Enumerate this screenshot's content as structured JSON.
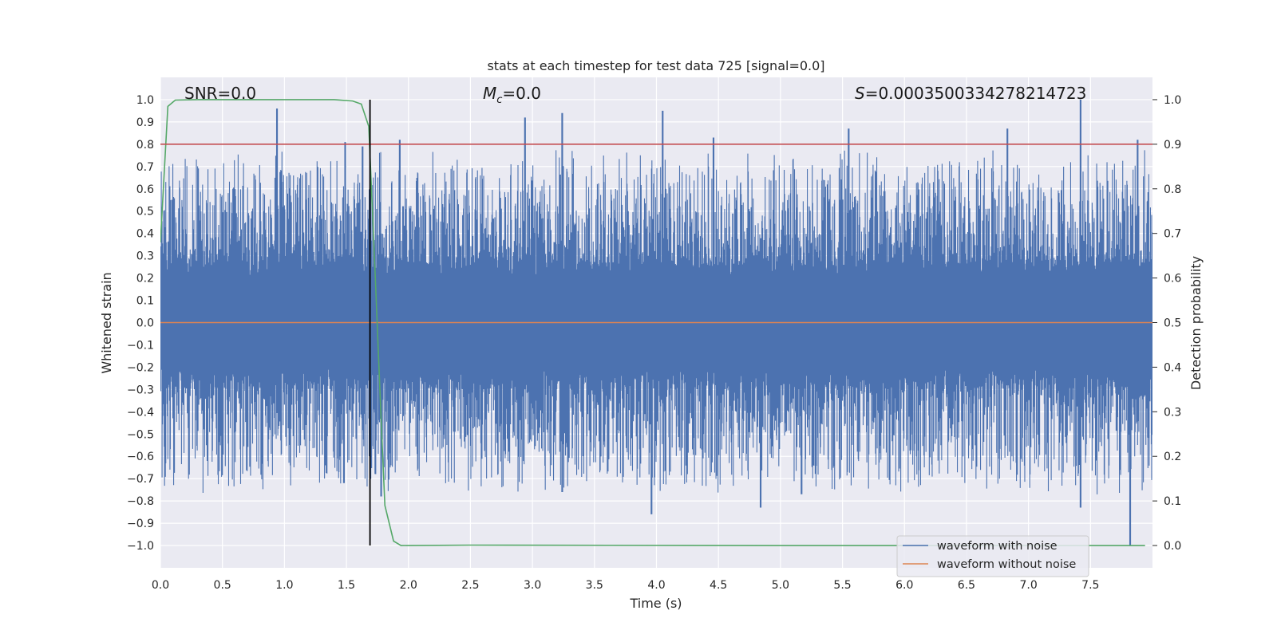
{
  "chart_data": {
    "type": "line",
    "title": "stats at each timestep for test data 725 [signal=0.0]",
    "xlabel": "Time (s)",
    "ylabel": "Whitened strain",
    "ylabel_right": "Detection probability",
    "xlim": [
      0.0,
      8.0
    ],
    "ylim": [
      -1.1,
      1.1
    ],
    "ylim_right": [
      -0.05,
      1.05
    ],
    "x_ticks": [
      0.0,
      0.5,
      1.0,
      1.5,
      2.0,
      2.5,
      3.0,
      3.5,
      4.0,
      4.5,
      5.0,
      5.5,
      6.0,
      6.5,
      7.0,
      7.5
    ],
    "x_tick_labels": [
      "0.0",
      "0.5",
      "1.0",
      "1.5",
      "2.0",
      "2.5",
      "3.0",
      "3.5",
      "4.0",
      "4.5",
      "5.0",
      "5.5",
      "6.0",
      "6.5",
      "7.0",
      "7.5"
    ],
    "y_ticks": [
      1.0,
      0.9,
      0.8,
      0.7,
      0.6,
      0.5,
      0.4,
      0.3,
      0.2,
      0.1,
      0.0,
      -0.1,
      -0.2,
      -0.3,
      -0.4,
      -0.5,
      -0.6,
      -0.7,
      -0.8,
      -0.9,
      -1.0
    ],
    "y_tick_labels": [
      "1.0",
      "0.9",
      "0.8",
      "0.7",
      "0.6",
      "0.5",
      "0.4",
      "0.3",
      "0.2",
      "0.1",
      "0.0",
      "−0.1",
      "−0.2",
      "−0.3",
      "−0.4",
      "−0.5",
      "−0.6",
      "−0.7",
      "−0.8",
      "−0.9",
      "−1.0"
    ],
    "y_right_ticks": [
      1.0,
      0.9,
      0.8,
      0.7,
      0.6,
      0.5,
      0.4,
      0.3,
      0.2,
      0.1,
      0.0
    ],
    "y_right_tick_labels": [
      "1.0",
      "0.9",
      "0.8",
      "0.7",
      "0.6",
      "0.5",
      "0.4",
      "0.3",
      "0.2",
      "0.1",
      "0.0"
    ],
    "annotations": {
      "snr": "SNR=0.0",
      "mc_symbol": "M",
      "mc_sub": "c",
      "mc_value": "=0.0",
      "s_symbol": "S",
      "s_value": "=0.0003500334278214723"
    },
    "legend": {
      "location": "lower-right",
      "entries": [
        {
          "label": "waveform with noise",
          "color": "#4c72b0"
        },
        {
          "label": "waveform without noise",
          "color": "#dd8452"
        }
      ]
    },
    "noise_envelope": {
      "description_series": "waveform with noise",
      "color": "#4c72b0",
      "core_band": [
        -0.42,
        0.42
      ],
      "spike_peaks": [
        {
          "t": 0.94,
          "v": 0.96
        },
        {
          "t": 1.49,
          "v": 0.81
        },
        {
          "t": 1.63,
          "v": 0.79
        },
        {
          "t": 1.93,
          "v": 0.82
        },
        {
          "t": 2.94,
          "v": 0.92
        },
        {
          "t": 3.24,
          "v": 0.94
        },
        {
          "t": 4.05,
          "v": 0.95
        },
        {
          "t": 4.46,
          "v": 0.83
        },
        {
          "t": 5.55,
          "v": 0.87
        },
        {
          "t": 6.83,
          "v": 0.87
        },
        {
          "t": 7.42,
          "v": 1.0
        },
        {
          "t": 7.88,
          "v": 0.82
        },
        {
          "t": 3.96,
          "v": -0.86
        },
        {
          "t": 4.84,
          "v": -0.83
        },
        {
          "t": 5.17,
          "v": -0.77
        },
        {
          "t": 7.42,
          "v": -0.83
        },
        {
          "t": 7.82,
          "v": -1.0
        },
        {
          "t": 1.48,
          "v": -0.72
        },
        {
          "t": 1.78,
          "v": -0.78
        },
        {
          "t": 3.24,
          "v": -0.76
        }
      ]
    },
    "series": [
      {
        "name": "waveform without noise",
        "color": "#dd8452",
        "axis": "left",
        "x": [
          0.0,
          8.0
        ],
        "y": [
          0.0,
          0.0
        ]
      },
      {
        "name": "detection probability",
        "color": "#55a868",
        "axis": "right",
        "x": [
          0.0,
          0.06,
          0.12,
          0.3,
          0.6,
          1.0,
          1.4,
          1.55,
          1.62,
          1.68,
          1.73,
          1.78,
          1.81,
          1.88,
          1.94,
          2.5,
          5.0,
          7.94
        ],
        "y": [
          0.68,
          0.985,
          0.999,
          1.0,
          1.0,
          1.0,
          1.0,
          0.997,
          0.99,
          0.94,
          0.62,
          0.28,
          0.09,
          0.01,
          0.0,
          0.001,
          0.0,
          0.0
        ]
      },
      {
        "name": "threshold",
        "color": "#c44e52",
        "axis": "right",
        "x": [
          0.0,
          8.0
        ],
        "y": [
          0.9,
          0.9
        ]
      }
    ],
    "vertical_marker": {
      "x": 1.69,
      "y_range": [
        -1.0,
        1.0
      ],
      "color": "#000000"
    }
  }
}
